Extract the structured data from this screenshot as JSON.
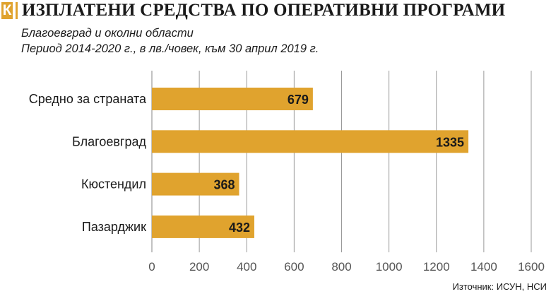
{
  "header": {
    "logo": "К",
    "title": "ИЗПЛАТЕНИ СРЕДСТВА ПО ОПЕРАТИВНИ ПРОГРАМИ",
    "subtitle_line1": "Благоевград и околни области",
    "subtitle_line2": "Период 2014-2020 г., в лв./човек, към 30 април 2019 г."
  },
  "source": "Източник: ИСУН, НСИ",
  "colors": {
    "bar": "#e0a32e",
    "grid": "#9a9a9a",
    "text": "#1a1a1a",
    "tick": "#555555"
  },
  "chart_data": {
    "type": "bar",
    "orientation": "horizontal",
    "title": "ИЗПЛАТЕНИ СРЕДСТВА ПО ОПЕРАТИВНИ ПРОГРАМИ",
    "categories": [
      "Средно за страната",
      "Благоевград",
      "Кюстендил",
      "Пазарджик"
    ],
    "values": [
      679,
      1335,
      368,
      432
    ],
    "xlim": [
      0,
      1600
    ],
    "xticks": [
      0,
      200,
      400,
      600,
      800,
      1000,
      1200,
      1400,
      1600
    ],
    "xlabel": "",
    "ylabel": "",
    "grid": true
  }
}
